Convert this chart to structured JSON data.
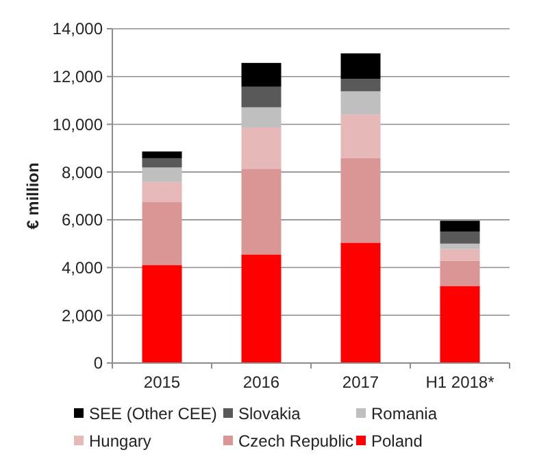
{
  "chart_data": {
    "type": "bar",
    "stacked": true,
    "ylabel": "€ million",
    "categories": [
      "2015",
      "2016",
      "2017",
      "H1 2018*"
    ],
    "series": [
      {
        "name": "Poland",
        "color": "#ff0000",
        "values": [
          4100,
          4550,
          5040,
          3230
        ]
      },
      {
        "name": "Czech Republic",
        "color": "#d99694",
        "values": [
          2640,
          3590,
          3540,
          1050
        ]
      },
      {
        "name": "Hungary",
        "color": "#e6b9b8",
        "values": [
          840,
          1730,
          1830,
          490
        ]
      },
      {
        "name": "Romania",
        "color": "#bfbfbf",
        "values": [
          610,
          840,
          970,
          230
        ]
      },
      {
        "name": "Slovakia",
        "color": "#595959",
        "values": [
          390,
          860,
          520,
          500
        ]
      },
      {
        "name": "SEE (Other CEE)",
        "color": "#000000",
        "values": [
          280,
          1000,
          1070,
          460
        ]
      }
    ],
    "ylim": [
      0,
      14000
    ],
    "yticks": [
      {
        "value": 0,
        "label": "0"
      },
      {
        "value": 2000,
        "label": "2,000"
      },
      {
        "value": 4000,
        "label": "4,000"
      },
      {
        "value": 6000,
        "label": "6,000"
      },
      {
        "value": 8000,
        "label": "8,000"
      },
      {
        "value": 10000,
        "label": "10,000"
      },
      {
        "value": 12000,
        "label": "12,000"
      },
      {
        "value": 14000,
        "label": "14,000"
      }
    ],
    "grid": "y",
    "legend": "bottom"
  }
}
